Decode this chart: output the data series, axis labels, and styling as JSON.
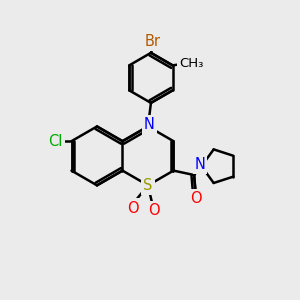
{
  "bg_color": "#ebebeb",
  "bond_color": "#000000",
  "bond_width": 1.8,
  "atom_colors": {
    "Br": "#b35900",
    "Cl": "#00aa00",
    "N": "#0000ff",
    "S": "#999900",
    "O": "#ff0000",
    "C": "#000000"
  },
  "font_size": 10.5,
  "fig_size": [
    3.0,
    3.0
  ],
  "dpi": 100,
  "xlim": [
    0,
    10
  ],
  "ylim": [
    0,
    10
  ]
}
